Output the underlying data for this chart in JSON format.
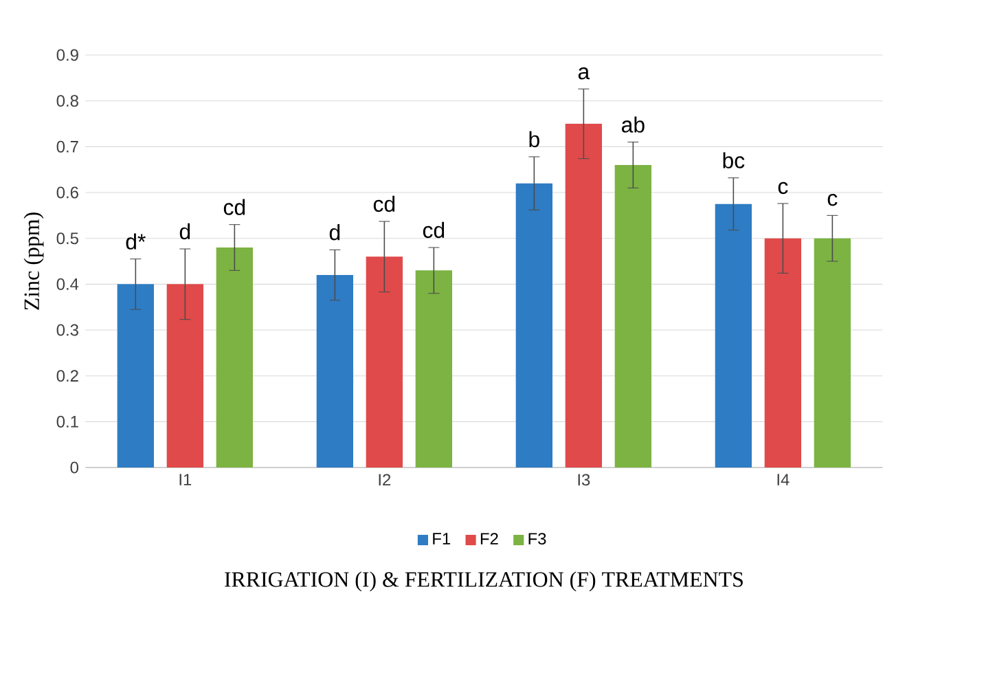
{
  "chart_data": {
    "type": "bar",
    "xlabel": "IRRIGATION (I) & FERTILIZATION (F) TREATMENTS",
    "ylabel": "Zinc (ppm)",
    "categories": [
      "I1",
      "I2",
      "I3",
      "I4"
    ],
    "series": [
      {
        "name": "F1",
        "color": "#2e7cc4",
        "values": [
          0.4,
          0.42,
          0.62,
          0.575
        ],
        "errors": [
          0.055,
          0.055,
          0.058,
          0.057
        ],
        "value_labels": [
          "d*",
          "d",
          "b",
          "bc"
        ]
      },
      {
        "name": "F2",
        "color": "#e04a4a",
        "values": [
          0.4,
          0.46,
          0.75,
          0.5
        ],
        "errors": [
          0.077,
          0.077,
          0.076,
          0.076
        ],
        "value_labels": [
          "d",
          "cd",
          "a",
          "c"
        ]
      },
      {
        "name": "F3",
        "color": "#7cb342",
        "values": [
          0.48,
          0.43,
          0.66,
          0.5
        ],
        "errors": [
          0.05,
          0.05,
          0.05,
          0.05
        ],
        "value_labels": [
          "cd",
          "cd",
          "ab",
          "c"
        ]
      }
    ],
    "ylim": [
      0,
      0.9
    ],
    "yticks": [
      0,
      0.1,
      0.2,
      0.3,
      0.4,
      0.5,
      0.6,
      0.7,
      0.8,
      0.9
    ],
    "grid": "y",
    "legend": "bottom"
  }
}
